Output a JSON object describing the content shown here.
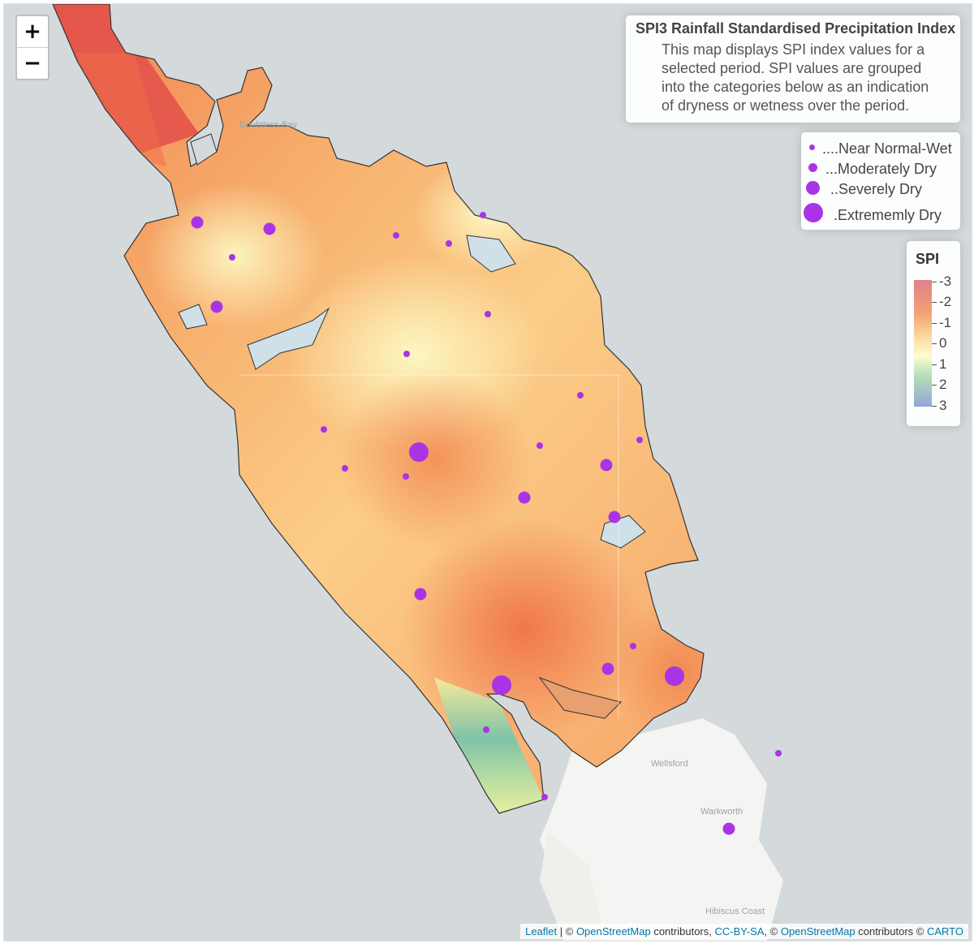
{
  "map": {
    "zoom_in": "+",
    "zoom_out": "−",
    "place_labels": [
      "Doubtless Bay",
      "Wellsford",
      "Warkworth",
      "Hibiscus Coast"
    ]
  },
  "info": {
    "title": "SPI3 Rainfall Standardised Precipitation Index",
    "body": "This map displays SPI index values for a selected period. SPI values are grouped into the categories below as an indication of dryness or wetness over the period."
  },
  "category_legend": [
    {
      "label": "....Near Normal-Wet",
      "size_class": 1
    },
    {
      "label": "...Moderately Dry",
      "size_class": 2
    },
    {
      "label": "..Severely Dry",
      "size_class": 3
    },
    {
      "label": ".Extrememly Dry",
      "size_class": 4
    }
  ],
  "spi_legend": {
    "title": "SPI",
    "ticks": [
      "-3",
      "-2",
      "-1",
      "0",
      "1",
      "2",
      "3"
    ],
    "colors": [
      "#d7616f",
      "#f08a50",
      "#fdd48e",
      "#fefcc2",
      "#9fd7a5",
      "#7a8ed1"
    ]
  },
  "marker_color": "#a934e6",
  "attribution": {
    "leaflet": "Leaflet",
    "sep": " | © ",
    "osm1": "OpenStreetMap",
    "mid": " contributors, ",
    "ccbysa": "CC-BY-SA",
    "mid2": ", © ",
    "osm2": "OpenStreetMap",
    "mid3": " contributors © ",
    "carto": "CARTO"
  }
}
